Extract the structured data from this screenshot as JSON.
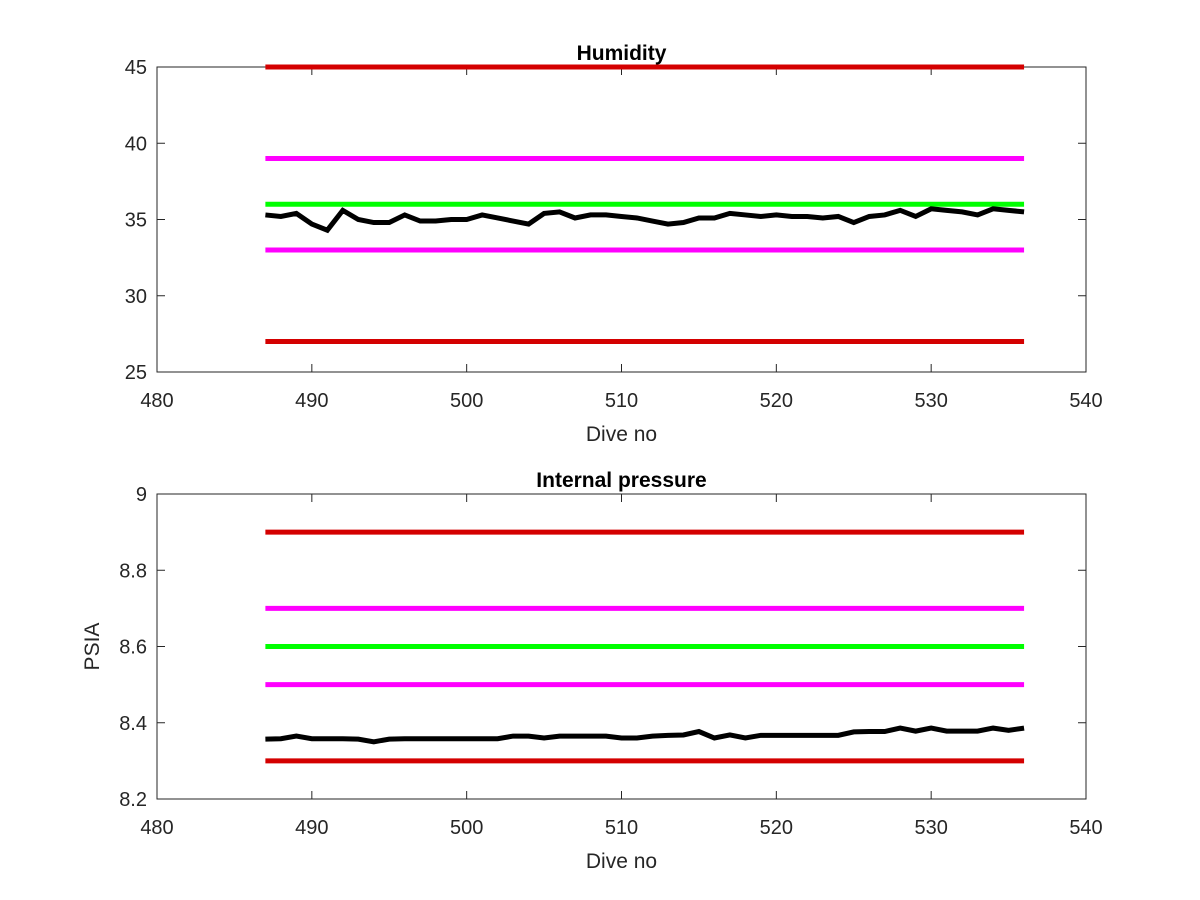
{
  "chart_data": [
    {
      "type": "line",
      "title": "Humidity",
      "xlabel": "Dive no",
      "ylabel": "",
      "xlim": [
        480,
        540
      ],
      "ylim": [
        25,
        45
      ],
      "xticks": [
        480,
        490,
        500,
        510,
        520,
        530,
        540
      ],
      "yticks": [
        25,
        30,
        35,
        40,
        45
      ],
      "grid": false,
      "legend": "none",
      "thresholds": [
        {
          "y": 45,
          "x_range": [
            487,
            536
          ],
          "color": "#d40000"
        },
        {
          "y": 39,
          "x_range": [
            487,
            536
          ],
          "color": "#ff00ff"
        },
        {
          "y": 36,
          "x_range": [
            487,
            536
          ],
          "color": "#00ff00"
        },
        {
          "y": 33,
          "x_range": [
            487,
            536
          ],
          "color": "#ff00ff"
        },
        {
          "y": 27,
          "x_range": [
            487,
            536
          ],
          "color": "#d40000"
        }
      ],
      "series": [
        {
          "color": "#000000",
          "x": [
            487,
            488,
            489,
            490,
            491,
            492,
            493,
            494,
            495,
            496,
            497,
            498,
            499,
            500,
            501,
            502,
            503,
            504,
            505,
            506,
            507,
            508,
            509,
            510,
            511,
            512,
            513,
            514,
            515,
            516,
            517,
            518,
            519,
            520,
            521,
            522,
            523,
            524,
            525,
            526,
            527,
            528,
            529,
            530,
            531,
            532,
            533,
            534,
            535,
            536
          ],
          "values": [
            35.3,
            35.2,
            35.4,
            34.7,
            34.3,
            35.6,
            35.0,
            34.8,
            34.8,
            35.3,
            34.9,
            34.9,
            35.0,
            35.0,
            35.3,
            35.1,
            34.9,
            34.7,
            35.4,
            35.5,
            35.1,
            35.3,
            35.3,
            35.2,
            35.1,
            34.9,
            34.7,
            34.8,
            35.1,
            35.1,
            35.4,
            35.3,
            35.2,
            35.3,
            35.2,
            35.2,
            35.1,
            35.2,
            34.8,
            35.2,
            35.3,
            35.6,
            35.2,
            35.7,
            35.6,
            35.5,
            35.3,
            35.7,
            35.6,
            35.5
          ]
        }
      ]
    },
    {
      "type": "line",
      "title": "Internal pressure",
      "xlabel": "Dive no",
      "ylabel": "PSIA",
      "xlim": [
        480,
        540
      ],
      "ylim": [
        8.2,
        9
      ],
      "xticks": [
        480,
        490,
        500,
        510,
        520,
        530,
        540
      ],
      "yticks": [
        8.2,
        8.4,
        8.6,
        8.8,
        9
      ],
      "grid": false,
      "legend": "none",
      "thresholds": [
        {
          "y": 8.9,
          "x_range": [
            487,
            536
          ],
          "color": "#d40000"
        },
        {
          "y": 8.7,
          "x_range": [
            487,
            536
          ],
          "color": "#ff00ff"
        },
        {
          "y": 8.6,
          "x_range": [
            487,
            536
          ],
          "color": "#00ff00"
        },
        {
          "y": 8.5,
          "x_range": [
            487,
            536
          ],
          "color": "#ff00ff"
        },
        {
          "y": 8.3,
          "x_range": [
            487,
            536
          ],
          "color": "#d40000"
        }
      ],
      "series": [
        {
          "color": "#000000",
          "x": [
            487,
            488,
            489,
            490,
            491,
            492,
            493,
            494,
            495,
            496,
            497,
            498,
            499,
            500,
            501,
            502,
            503,
            504,
            505,
            506,
            507,
            508,
            509,
            510,
            511,
            512,
            513,
            514,
            515,
            516,
            517,
            518,
            519,
            520,
            521,
            522,
            523,
            524,
            525,
            526,
            527,
            528,
            529,
            530,
            531,
            532,
            533,
            534,
            535,
            536
          ],
          "values": [
            8.357,
            8.358,
            8.365,
            8.358,
            8.358,
            8.358,
            8.357,
            8.35,
            8.357,
            8.358,
            8.358,
            8.358,
            8.358,
            8.358,
            8.358,
            8.358,
            8.365,
            8.365,
            8.36,
            8.365,
            8.365,
            8.365,
            8.365,
            8.36,
            8.36,
            8.365,
            8.367,
            8.368,
            8.377,
            8.36,
            8.368,
            8.36,
            8.367,
            8.367,
            8.367,
            8.367,
            8.367,
            8.367,
            8.376,
            8.377,
            8.377,
            8.386,
            8.378,
            8.386,
            8.378,
            8.378,
            8.378,
            8.386,
            8.38,
            8.386
          ]
        }
      ]
    }
  ]
}
